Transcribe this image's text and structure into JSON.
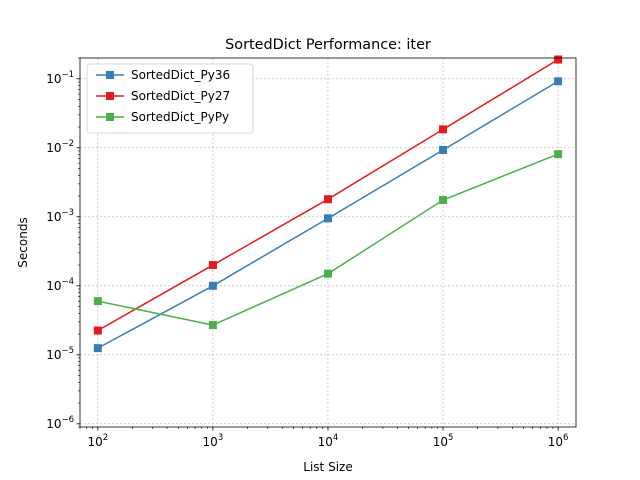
{
  "chart_data": {
    "type": "line",
    "title": "SortedDict Performance: iter",
    "xlabel": "List Size",
    "ylabel": "Seconds",
    "xscale": "log",
    "yscale": "log",
    "xlim": [
      70,
      1430000
    ],
    "ylim": [
      9e-07,
      0.2
    ],
    "grid": true,
    "legend_position": "top-left",
    "x": [
      100,
      1000,
      10000,
      100000,
      1000000
    ],
    "x_ticks": [
      {
        "base": "10",
        "exp": "2",
        "value": 100
      },
      {
        "base": "10",
        "exp": "3",
        "value": 1000
      },
      {
        "base": "10",
        "exp": "4",
        "value": 10000
      },
      {
        "base": "10",
        "exp": "5",
        "value": 100000
      },
      {
        "base": "10",
        "exp": "6",
        "value": 1000000
      }
    ],
    "y_ticks": [
      {
        "base": "10",
        "exp": "−6",
        "value": 1e-06
      },
      {
        "base": "10",
        "exp": "−5",
        "value": 1e-05
      },
      {
        "base": "10",
        "exp": "−4",
        "value": 0.0001
      },
      {
        "base": "10",
        "exp": "−3",
        "value": 0.001
      },
      {
        "base": "10",
        "exp": "−2",
        "value": 0.01
      },
      {
        "base": "10",
        "exp": "−1",
        "value": 0.1
      }
    ],
    "series": [
      {
        "name": "SortedDict_Py36",
        "color": "#377eb8",
        "values": [
          1.25e-05,
          0.0001,
          0.00095,
          0.0093,
          0.092
        ]
      },
      {
        "name": "SortedDict_Py27",
        "color": "#e41a1c",
        "values": [
          2.25e-05,
          0.0002,
          0.0018,
          0.0185,
          0.19
        ]
      },
      {
        "name": "SortedDict_PyPy",
        "color": "#4daf4a",
        "values": [
          6e-05,
          2.7e-05,
          0.00015,
          0.00175,
          0.0081
        ]
      }
    ]
  }
}
